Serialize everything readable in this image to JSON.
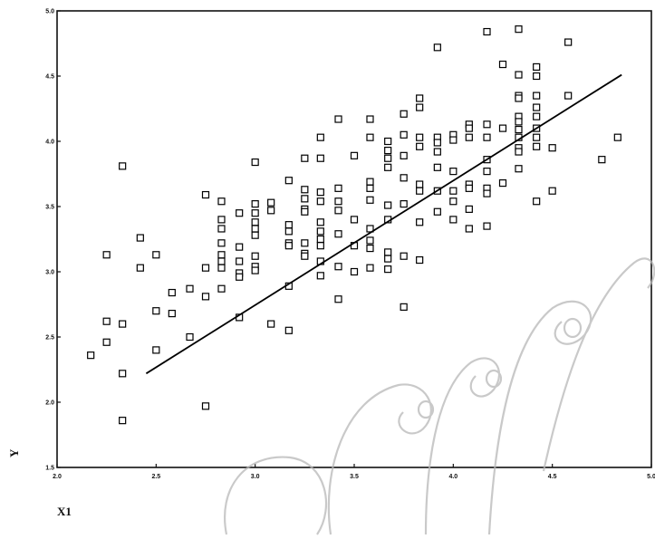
{
  "chart_data": {
    "type": "scatter",
    "xlabel": "X1",
    "ylabel": "Y",
    "xlim": [
      2.0,
      5.0
    ],
    "ylim": [
      1.5,
      5.0
    ],
    "x_ticks": [
      "2.0",
      "2.5",
      "3.0",
      "3.5",
      "4.0",
      "4.5",
      "5.0"
    ],
    "y_ticks": [
      "1.5",
      "2.0",
      "2.5",
      "3.0",
      "3.5",
      "4.0",
      "4.5",
      "5.0"
    ],
    "grid": false,
    "marker": "open-square",
    "fit_line": {
      "x": [
        2.45,
        4.85
      ],
      "y": [
        2.22,
        4.51
      ]
    },
    "points": [
      [
        2.17,
        2.36
      ],
      [
        2.25,
        3.13
      ],
      [
        2.25,
        2.62
      ],
      [
        2.25,
        2.46
      ],
      [
        2.33,
        3.81
      ],
      [
        2.33,
        2.6
      ],
      [
        2.33,
        2.22
      ],
      [
        2.33,
        1.86
      ],
      [
        2.42,
        3.26
      ],
      [
        2.42,
        3.03
      ],
      [
        2.5,
        3.13
      ],
      [
        2.5,
        2.7
      ],
      [
        2.5,
        2.4
      ],
      [
        2.58,
        2.84
      ],
      [
        2.58,
        2.68
      ],
      [
        2.67,
        2.87
      ],
      [
        2.67,
        2.5
      ],
      [
        2.75,
        3.59
      ],
      [
        2.75,
        3.03
      ],
      [
        2.75,
        2.81
      ],
      [
        2.75,
        1.97
      ],
      [
        2.83,
        3.54
      ],
      [
        2.83,
        3.4
      ],
      [
        2.83,
        3.33
      ],
      [
        2.83,
        3.22
      ],
      [
        2.83,
        3.13
      ],
      [
        2.83,
        3.08
      ],
      [
        2.83,
        3.03
      ],
      [
        2.83,
        2.87
      ],
      [
        2.92,
        3.45
      ],
      [
        2.92,
        3.19
      ],
      [
        2.92,
        3.08
      ],
      [
        2.92,
        2.99
      ],
      [
        2.92,
        2.96
      ],
      [
        2.92,
        2.65
      ],
      [
        3.0,
        3.84
      ],
      [
        3.0,
        3.52
      ],
      [
        3.0,
        3.45
      ],
      [
        3.0,
        3.38
      ],
      [
        3.0,
        3.33
      ],
      [
        3.0,
        3.28
      ],
      [
        3.0,
        3.12
      ],
      [
        3.0,
        3.04
      ],
      [
        3.0,
        3.01
      ],
      [
        3.08,
        3.53
      ],
      [
        3.08,
        3.47
      ],
      [
        3.08,
        2.6
      ],
      [
        3.17,
        3.7
      ],
      [
        3.17,
        3.36
      ],
      [
        3.17,
        3.31
      ],
      [
        3.17,
        3.22
      ],
      [
        3.17,
        3.2
      ],
      [
        3.17,
        2.89
      ],
      [
        3.17,
        2.55
      ],
      [
        3.25,
        3.87
      ],
      [
        3.25,
        3.63
      ],
      [
        3.25,
        3.56
      ],
      [
        3.25,
        3.48
      ],
      [
        3.25,
        3.46
      ],
      [
        3.25,
        3.22
      ],
      [
        3.25,
        3.14
      ],
      [
        3.25,
        3.12
      ],
      [
        3.33,
        4.03
      ],
      [
        3.33,
        3.87
      ],
      [
        3.33,
        3.61
      ],
      [
        3.33,
        3.54
      ],
      [
        3.33,
        3.38
      ],
      [
        3.33,
        3.31
      ],
      [
        3.33,
        3.25
      ],
      [
        3.33,
        3.2
      ],
      [
        3.33,
        3.08
      ],
      [
        3.33,
        2.97
      ],
      [
        3.42,
        4.17
      ],
      [
        3.42,
        3.64
      ],
      [
        3.42,
        3.54
      ],
      [
        3.42,
        3.47
      ],
      [
        3.42,
        3.29
      ],
      [
        3.42,
        3.04
      ],
      [
        3.42,
        2.79
      ],
      [
        3.5,
        3.89
      ],
      [
        3.5,
        3.4
      ],
      [
        3.5,
        3.2
      ],
      [
        3.5,
        3.0
      ],
      [
        3.58,
        4.17
      ],
      [
        3.58,
        4.03
      ],
      [
        3.58,
        3.69
      ],
      [
        3.58,
        3.64
      ],
      [
        3.58,
        3.55
      ],
      [
        3.58,
        3.33
      ],
      [
        3.58,
        3.24
      ],
      [
        3.58,
        3.18
      ],
      [
        3.58,
        3.03
      ],
      [
        3.67,
        4.0
      ],
      [
        3.67,
        3.93
      ],
      [
        3.67,
        3.87
      ],
      [
        3.67,
        3.8
      ],
      [
        3.67,
        3.51
      ],
      [
        3.67,
        3.4
      ],
      [
        3.67,
        3.15
      ],
      [
        3.67,
        3.1
      ],
      [
        3.67,
        3.02
      ],
      [
        3.75,
        4.21
      ],
      [
        3.75,
        4.05
      ],
      [
        3.75,
        3.89
      ],
      [
        3.75,
        3.72
      ],
      [
        3.75,
        3.52
      ],
      [
        3.75,
        3.12
      ],
      [
        3.75,
        2.73
      ],
      [
        3.83,
        4.33
      ],
      [
        3.83,
        4.26
      ],
      [
        3.83,
        4.03
      ],
      [
        3.83,
        3.96
      ],
      [
        3.83,
        3.67
      ],
      [
        3.83,
        3.62
      ],
      [
        3.83,
        3.38
      ],
      [
        3.83,
        3.09
      ],
      [
        3.92,
        4.72
      ],
      [
        3.92,
        4.03
      ],
      [
        3.92,
        3.99
      ],
      [
        3.92,
        3.92
      ],
      [
        3.92,
        3.8
      ],
      [
        3.92,
        3.62
      ],
      [
        3.92,
        3.46
      ],
      [
        4.0,
        4.05
      ],
      [
        4.0,
        4.01
      ],
      [
        4.0,
        3.77
      ],
      [
        4.0,
        3.62
      ],
      [
        4.0,
        3.54
      ],
      [
        4.0,
        3.4
      ],
      [
        4.08,
        4.13
      ],
      [
        4.08,
        4.1
      ],
      [
        4.08,
        4.03
      ],
      [
        4.08,
        3.67
      ],
      [
        4.08,
        3.64
      ],
      [
        4.08,
        3.48
      ],
      [
        4.08,
        3.33
      ],
      [
        4.17,
        4.84
      ],
      [
        4.17,
        4.13
      ],
      [
        4.17,
        4.03
      ],
      [
        4.17,
        3.86
      ],
      [
        4.17,
        3.77
      ],
      [
        4.17,
        3.64
      ],
      [
        4.17,
        3.6
      ],
      [
        4.17,
        3.35
      ],
      [
        4.25,
        4.59
      ],
      [
        4.25,
        4.1
      ],
      [
        4.25,
        3.68
      ],
      [
        4.33,
        4.86
      ],
      [
        4.33,
        4.51
      ],
      [
        4.33,
        4.35
      ],
      [
        4.33,
        4.33
      ],
      [
        4.33,
        4.19
      ],
      [
        4.33,
        4.15
      ],
      [
        4.33,
        4.09
      ],
      [
        4.33,
        4.03
      ],
      [
        4.33,
        3.95
      ],
      [
        4.33,
        3.92
      ],
      [
        4.33,
        3.79
      ],
      [
        4.42,
        4.57
      ],
      [
        4.42,
        4.5
      ],
      [
        4.42,
        4.35
      ],
      [
        4.42,
        4.26
      ],
      [
        4.42,
        4.19
      ],
      [
        4.42,
        4.1
      ],
      [
        4.42,
        4.03
      ],
      [
        4.42,
        3.96
      ],
      [
        4.42,
        3.54
      ],
      [
        4.5,
        3.95
      ],
      [
        4.5,
        3.62
      ],
      [
        4.58,
        4.76
      ],
      [
        4.58,
        4.35
      ],
      [
        4.75,
        3.86
      ],
      [
        4.83,
        4.03
      ]
    ]
  }
}
